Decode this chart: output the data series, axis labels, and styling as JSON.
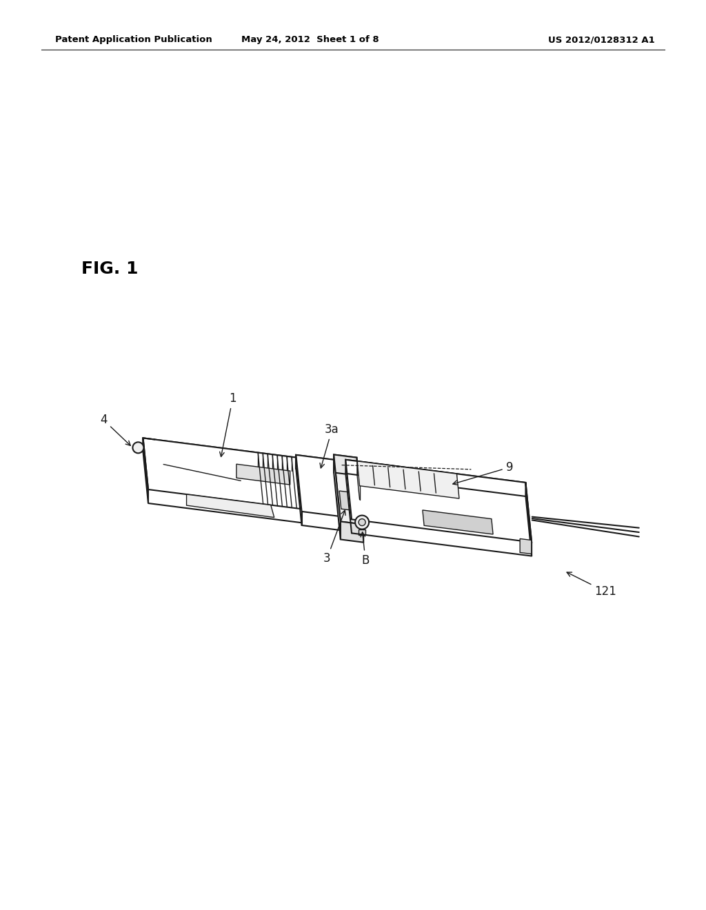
{
  "bg_color": "#ffffff",
  "line_color": "#1a1a1a",
  "header_left": "Patent Application Publication",
  "header_center": "May 24, 2012  Sheet 1 of 8",
  "header_right": "US 2012/0128312 A1",
  "fig_label": "FIG. 1",
  "header_fontsize": 9.5,
  "fig_label_fontsize": 16,
  "lw_main": 1.5,
  "lw_thin": 1.0,
  "lw_thick": 2.0
}
